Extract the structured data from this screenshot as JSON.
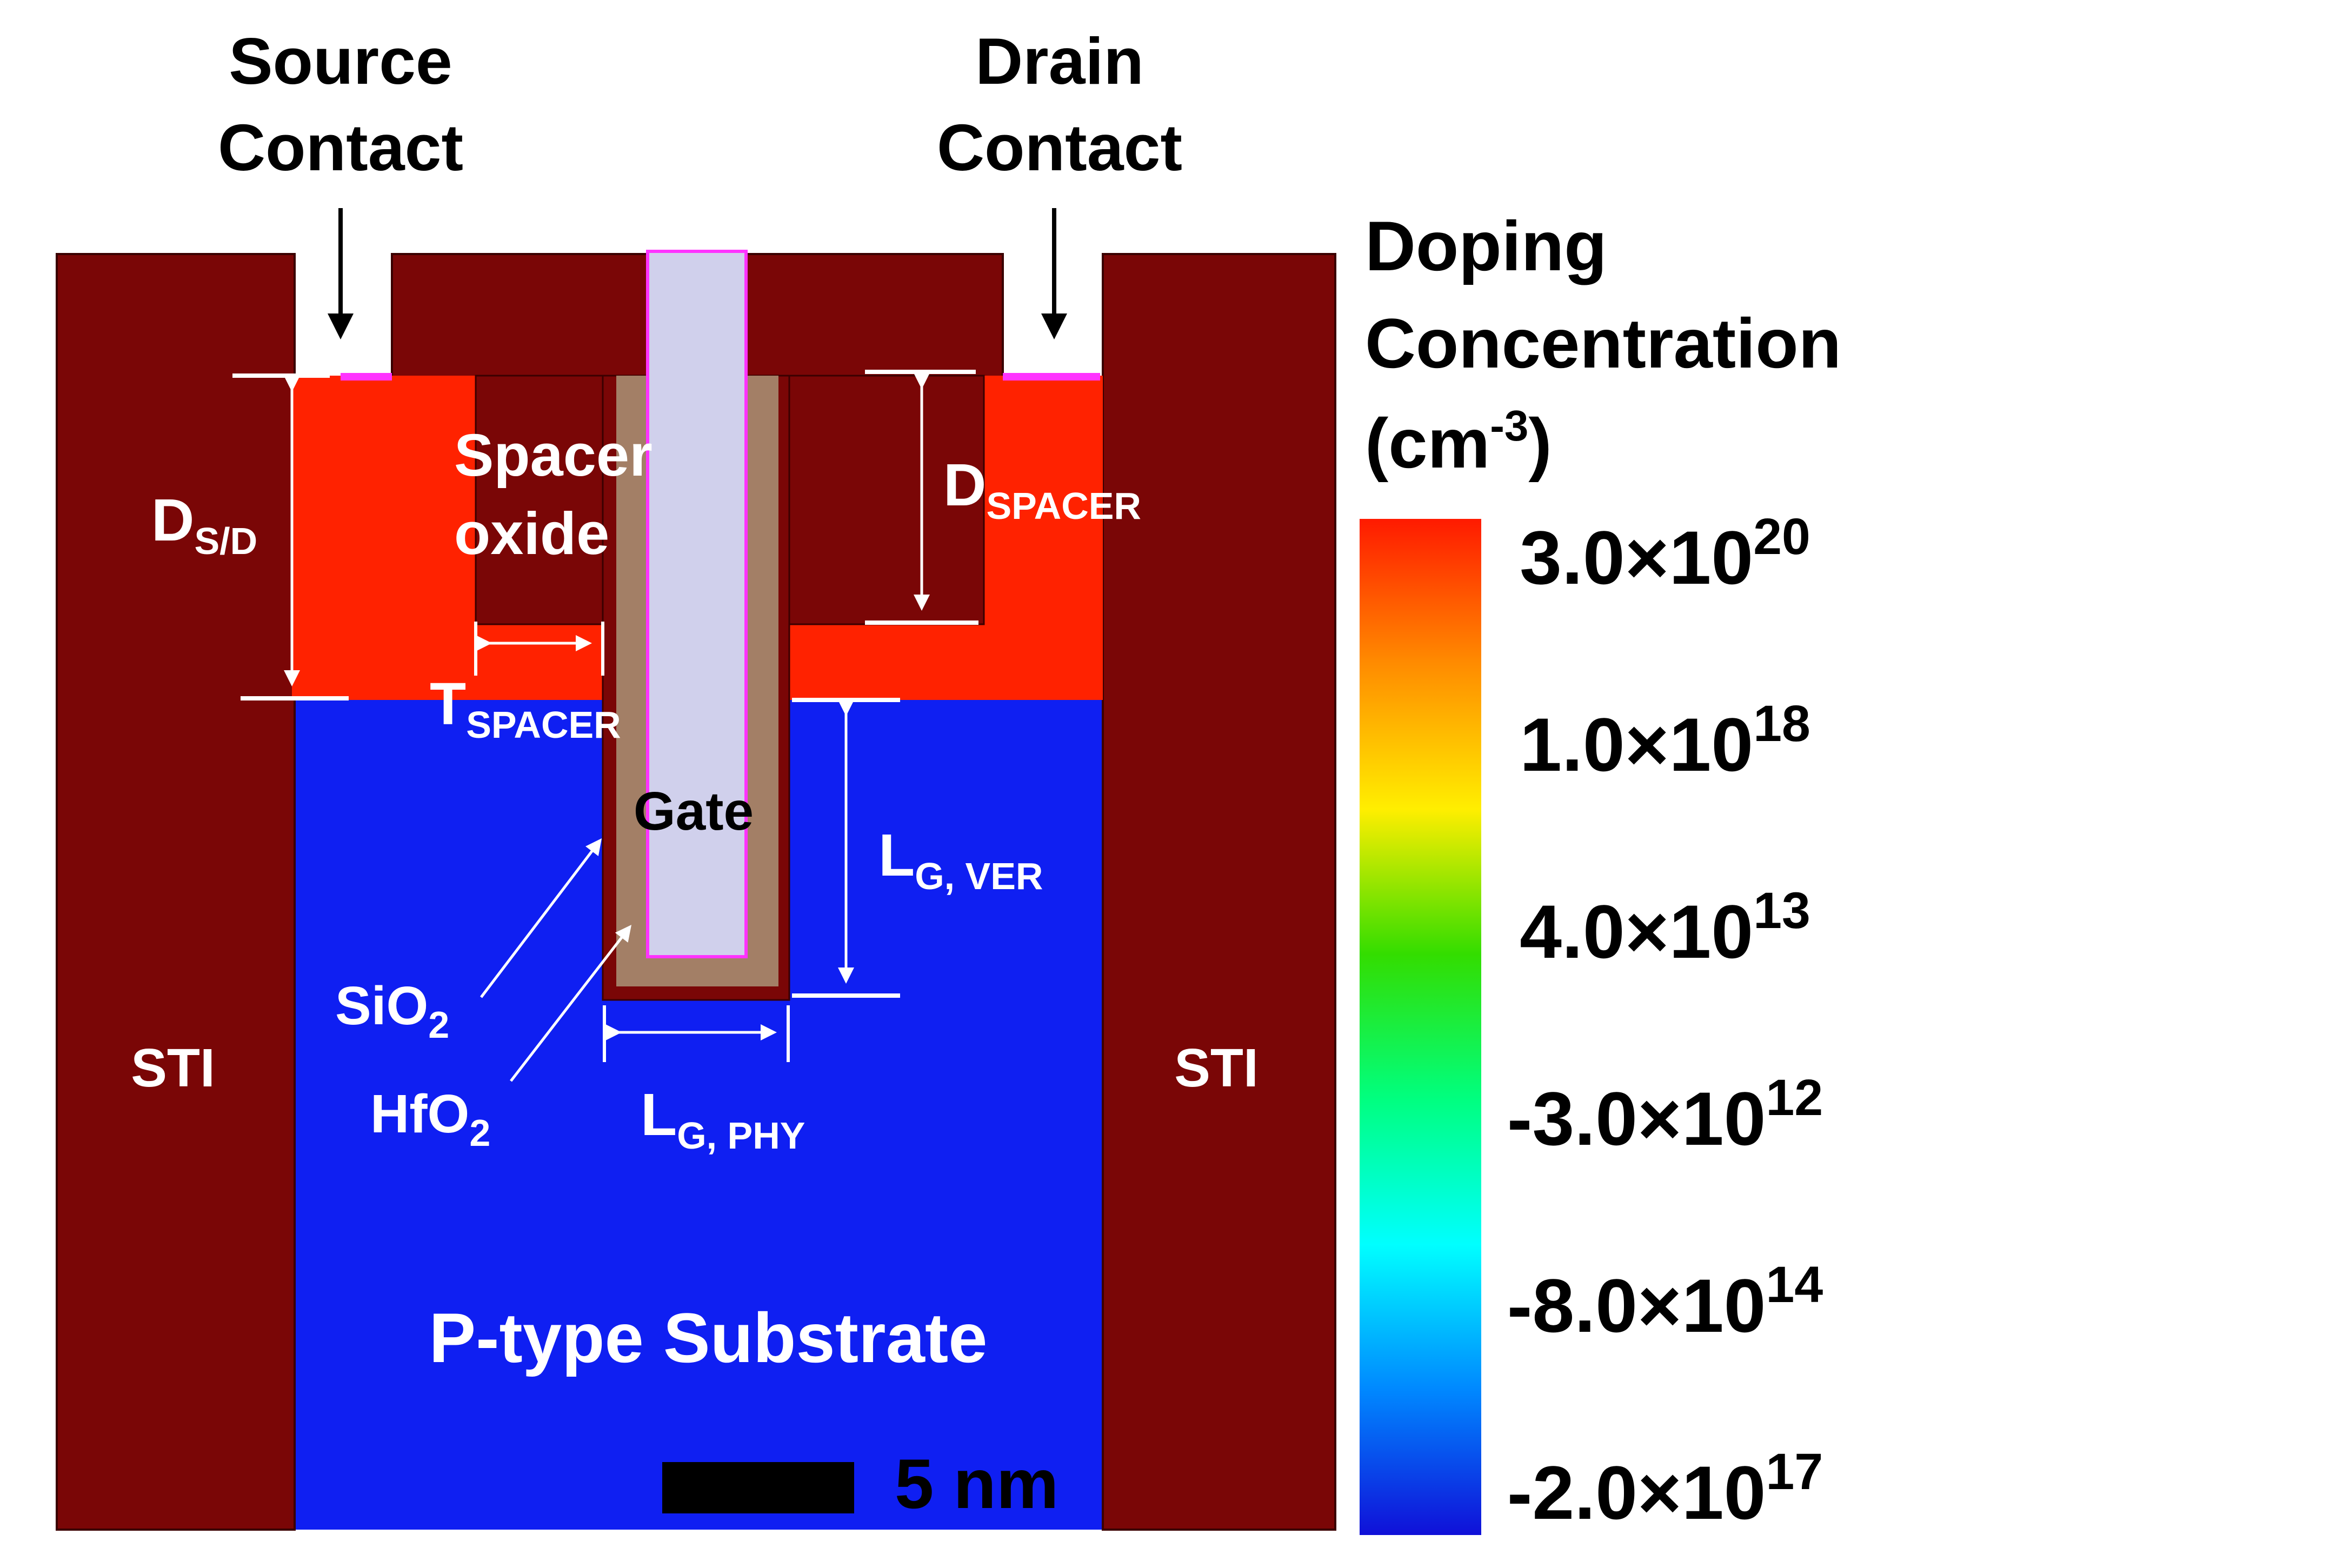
{
  "labels": {
    "source_contact": [
      "Source",
      "Contact"
    ],
    "drain_contact": [
      "Drain",
      "Contact"
    ],
    "d_sd": {
      "main": "D",
      "sub": "S/D"
    },
    "spacer_oxide": [
      "Spacer",
      "oxide"
    ],
    "d_spacer": {
      "main": "D",
      "sub": "SPACER"
    },
    "t_spacer": {
      "main": "T",
      "sub": "SPACER"
    },
    "gate": "Gate",
    "lg_ver": {
      "main": "L",
      "sub": "G, VER"
    },
    "sio2": {
      "main": "SiO",
      "sub": "2"
    },
    "hfo2": {
      "main": "HfO",
      "sub": "2"
    },
    "lg_phy": {
      "main": "L",
      "sub": "G, PHY"
    },
    "sti_left": "STI",
    "sti_right": "STI",
    "substrate": "P-type Substrate",
    "scale_bar": "5 nm"
  },
  "colorbar": {
    "title": [
      "Doping",
      "Concentration"
    ],
    "unit": {
      "open": "(cm",
      "sup": "-3",
      "close": ")"
    },
    "ticks": [
      {
        "mantissa": "3.0×10",
        "exp": "20"
      },
      {
        "mantissa": "1.0×10",
        "exp": "18"
      },
      {
        "mantissa": "4.0×10",
        "exp": "13"
      },
      {
        "mantissa": "-3.0×10",
        "exp": "12"
      },
      {
        "mantissa": "-8.0×10",
        "exp": "14"
      },
      {
        "mantissa": "-2.0×10",
        "exp": "17"
      }
    ],
    "gradient": [
      "#ff1a00",
      "#ff8c00",
      "#ffee00",
      "#33dd00",
      "#00ff80",
      "#00ffff",
      "#0088ff",
      "#1010d8"
    ]
  },
  "colors": {
    "sti": "#7a0606",
    "source_drain": "#ff2200",
    "substrate": "#0f1ff2",
    "gate_metal": "#d0d0ec",
    "hfo2": "#a37f66",
    "silicide": "#ff33ff"
  }
}
